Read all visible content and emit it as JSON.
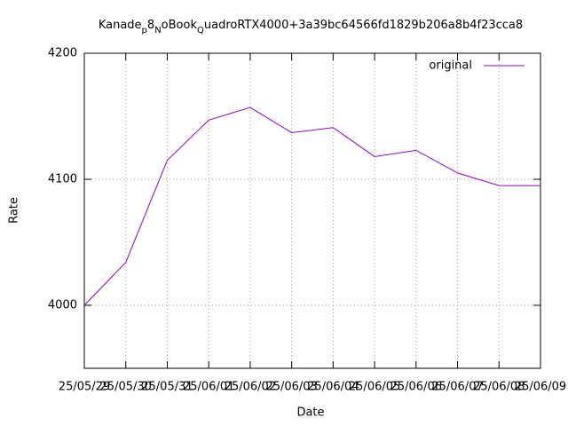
{
  "chart_data": {
    "type": "line",
    "title": [
      {
        "text": "Kanade"
      },
      {
        "text": "p",
        "sub": true
      },
      {
        "text": "8"
      },
      {
        "text": "N",
        "sub": true
      },
      {
        "text": "oBook"
      },
      {
        "text": "Q",
        "sub": true
      },
      {
        "text": "uadroRTX4000+3a39bc64566fd1829b206a8b4f23cca8"
      }
    ],
    "x_label": "Date",
    "y_label": "Rate",
    "categories": [
      "25/05/29",
      "25/05/30",
      "25/05/31",
      "25/06/01",
      "25/06/02",
      "25/06/03",
      "25/06/04",
      "25/06/05",
      "25/06/06",
      "25/06/07",
      "25/06/08",
      "25/06/09"
    ],
    "series": [
      {
        "name": "original",
        "color": "#9400d3",
        "values": [
          4000,
          4034,
          4115,
          4147,
          4157,
          4137,
          4141,
          4118,
          4123,
          4105,
          4095,
          4095
        ]
      }
    ],
    "ylim": [
      3950,
      4200
    ],
    "yticks": [
      4000,
      4100,
      4200
    ],
    "grid": true,
    "legend": "top-right"
  }
}
